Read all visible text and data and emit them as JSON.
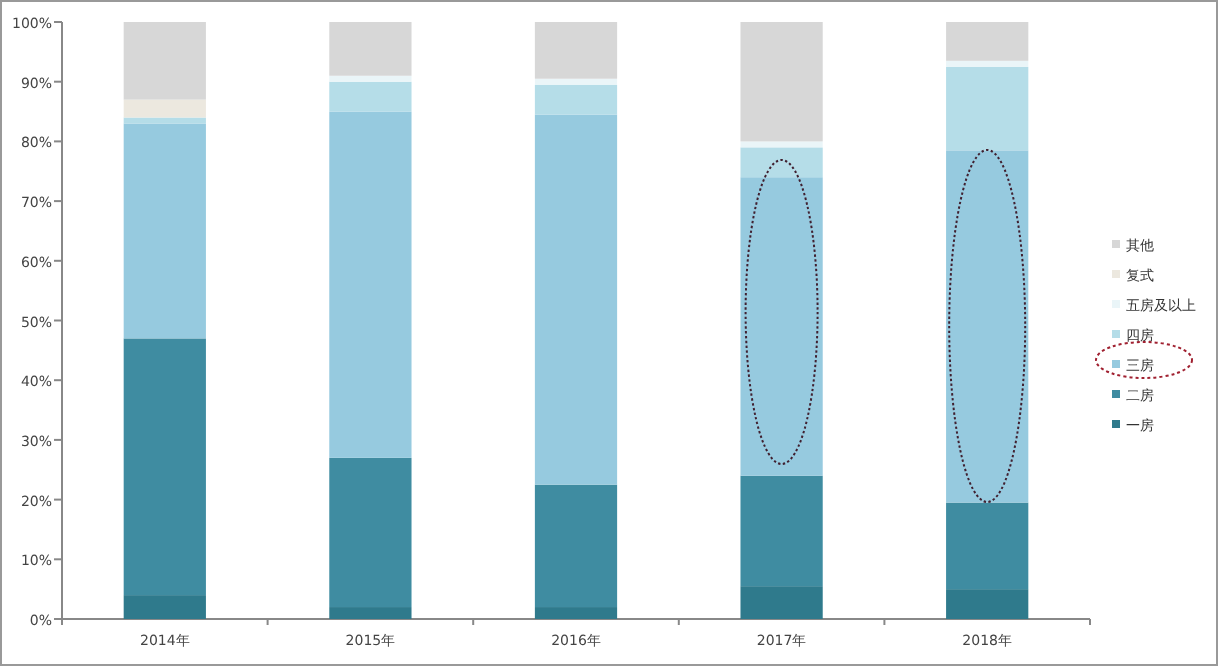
{
  "chart_data": {
    "type": "bar",
    "stacked": true,
    "categories": [
      "2014年",
      "2015年",
      "2016年",
      "2017年",
      "2018年"
    ],
    "ylim": [
      0,
      100
    ],
    "yticks": [
      {
        "value": 0,
        "label": "0%"
      },
      {
        "value": 10,
        "label": "10%"
      },
      {
        "value": 20,
        "label": "20%"
      },
      {
        "value": 30,
        "label": "30%"
      },
      {
        "value": 40,
        "label": "40%"
      },
      {
        "value": 50,
        "label": "50%"
      },
      {
        "value": 60,
        "label": "60%"
      },
      {
        "value": 70,
        "label": "70%"
      },
      {
        "value": 80,
        "label": "80%"
      },
      {
        "value": 90,
        "label": "90%"
      },
      {
        "value": 100,
        "label": "100%"
      }
    ],
    "legend": "right",
    "grid": false,
    "series": [
      {
        "name": "一房",
        "color": "#2f7a8c",
        "values": [
          4,
          2,
          2,
          5.5,
          5
        ]
      },
      {
        "name": "二房",
        "color": "#3f8ca1",
        "values": [
          43,
          25,
          20.5,
          18.5,
          14.5
        ]
      },
      {
        "name": "三房",
        "color": "#96cadf",
        "values": [
          36,
          58,
          62,
          50,
          59
        ]
      },
      {
        "name": "四房",
        "color": "#b5dde8",
        "values": [
          1,
          5,
          5,
          5,
          14
        ]
      },
      {
        "name": "五房及以上",
        "color": "#eaf5f8",
        "values": [
          0,
          1,
          1,
          1,
          1
        ]
      },
      {
        "name": "复式",
        "color": "#ece8df",
        "values": [
          3,
          0,
          0,
          0,
          0
        ]
      },
      {
        "name": "其他",
        "color": "#d7d7d7",
        "values": [
          13,
          9,
          9.5,
          20,
          6.5
        ]
      }
    ]
  }
}
